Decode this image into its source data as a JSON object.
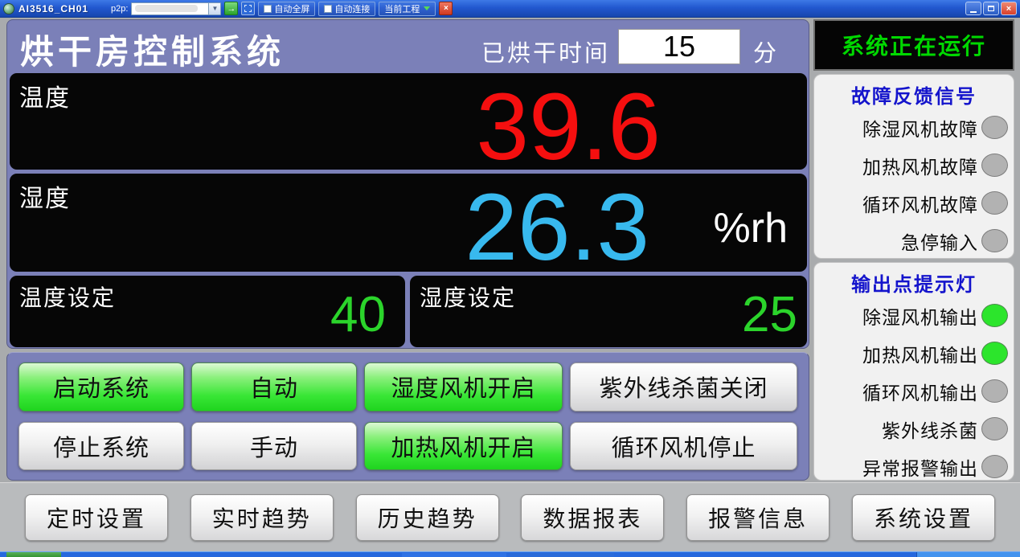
{
  "window": {
    "title": "AI3516_CH01",
    "toolbar": {
      "p2p_label": "p2p:",
      "p2p_value": "",
      "go_icon": "→",
      "dropdown_icon": "▼",
      "fullscreen_checkbox": "自动全屏",
      "autoconnect_checkbox": "自动连接",
      "project_button": "当前工程",
      "close_icon": "×"
    },
    "controls": {
      "close_icon": "×"
    }
  },
  "header": {
    "title": "烘干房控制系统",
    "time_label": "已烘干时间",
    "time_value": "15",
    "time_unit": "分"
  },
  "status": {
    "running_text": "系统正在运行"
  },
  "readings": {
    "temperature": {
      "label": "温度",
      "value": "39.6"
    },
    "humidity": {
      "label": "湿度",
      "value": "26.3",
      "unit": "%rh"
    },
    "temp_set": {
      "label": "温度设定",
      "value": "40"
    },
    "humid_set": {
      "label": "湿度设定",
      "value": "25"
    }
  },
  "control_buttons": [
    {
      "label": "启动系统",
      "state": "on"
    },
    {
      "label": "自动",
      "state": "on"
    },
    {
      "label": "湿度风机开启",
      "state": "on"
    },
    {
      "label": "紫外线杀菌关闭",
      "state": "off"
    },
    {
      "label": "停止系统",
      "state": "off"
    },
    {
      "label": "手动",
      "state": "off"
    },
    {
      "label": "加热风机开启",
      "state": "on"
    },
    {
      "label": "循环风机停止",
      "state": "off"
    }
  ],
  "fault_panel": {
    "title": "故障反馈信号",
    "items": [
      {
        "label": "除湿风机故障",
        "state": "off"
      },
      {
        "label": "加热风机故障",
        "state": "off"
      },
      {
        "label": "循环风机故障",
        "state": "off"
      },
      {
        "label": "急停输入",
        "state": "off"
      }
    ]
  },
  "output_panel": {
    "title": "输出点提示灯",
    "items": [
      {
        "label": "除湿风机输出",
        "state": "on"
      },
      {
        "label": "加热风机输出",
        "state": "on"
      },
      {
        "label": "循环风机输出",
        "state": "off"
      },
      {
        "label": "紫外线杀菌",
        "state": "off"
      },
      {
        "label": "异常报警输出",
        "state": "off"
      }
    ]
  },
  "nav_buttons": [
    {
      "label": "定时设置"
    },
    {
      "label": "实时趋势"
    },
    {
      "label": "历史趋势"
    },
    {
      "label": "数据报表"
    },
    {
      "label": "报警信息"
    },
    {
      "label": "系统设置"
    }
  ],
  "colors": {
    "background_purple": "#7b80b8",
    "panel_black": "#060606",
    "temperature_red": "#f50f0f",
    "humidity_cyan": "#38b9ee",
    "setpoint_green": "#2bd42b",
    "status_green": "#00d800",
    "panel_title_blue": "#1414cc",
    "lamp_on_green": "#2ce52c",
    "lamp_off_gray": "#b2b2b2"
  }
}
